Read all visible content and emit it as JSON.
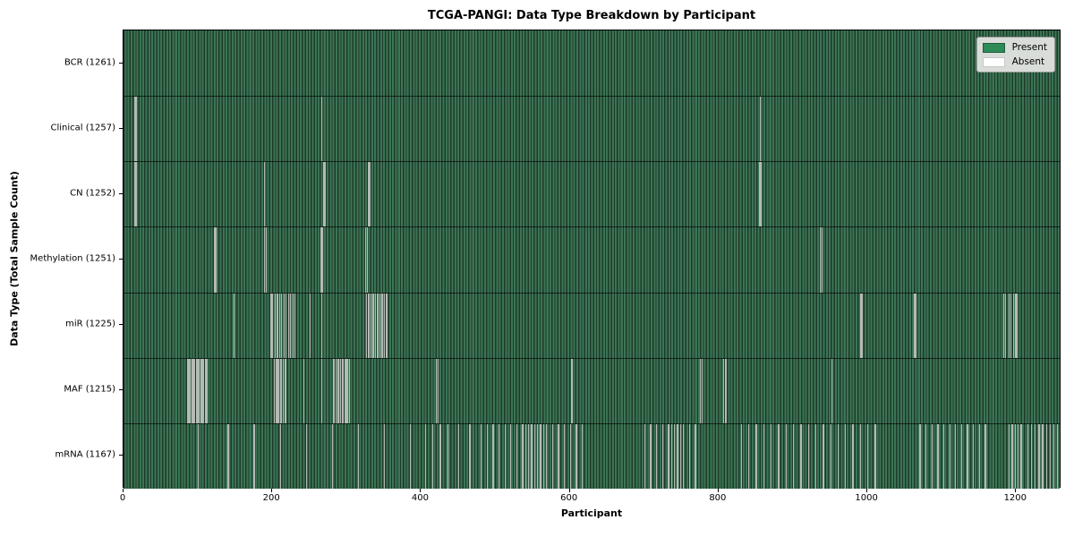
{
  "chart_data": {
    "type": "heatmap",
    "title": "TCGA-PANGI: Data Type Breakdown by Participant",
    "xlabel": "Participant",
    "ylabel": "Data Type (Total Sample Count)",
    "xlim": [
      0,
      1261
    ],
    "xticks": [
      0,
      200,
      400,
      600,
      800,
      1000,
      1200
    ],
    "grid": false,
    "legend_position": "upper right",
    "legend": [
      {
        "label": "Present",
        "color": "#2e8b57"
      },
      {
        "label": "Absent",
        "color": "#ffffff"
      }
    ],
    "colors": {
      "present": "#2e8b57",
      "absent": "#ffffff",
      "stripe_green": "#3c7556",
      "stripe_dark": "#1d3a28",
      "absent_line": "#b4bab4",
      "legend_bg": "#d9ddd9"
    },
    "rows": [
      {
        "label": "BCR (1261)",
        "total": 1261,
        "absent_count": 0,
        "absent_participants": []
      },
      {
        "label": "Clinical (1257)",
        "total": 1257,
        "absent_count": 4,
        "absent_participants": [
          15,
          17,
          266,
          855
        ]
      },
      {
        "label": "CN (1252)",
        "total": 1252,
        "absent_count": 9,
        "absent_participants": [
          14,
          16,
          189,
          268,
          270,
          329,
          331,
          854,
          856
        ]
      },
      {
        "label": "Methylation (1251)",
        "total": 1251,
        "absent_count": 10,
        "absent_participants": [
          121,
          123,
          189,
          191,
          265,
          267,
          325,
          327,
          936,
          938
        ]
      },
      {
        "label": "miR (1225)",
        "total": 1225,
        "absent_count": 36,
        "absent_participants": [
          148,
          197,
          199,
          203,
          206,
          209,
          212,
          215,
          218,
          221,
          224,
          227,
          230,
          250,
          266,
          326,
          329,
          332,
          335,
          338,
          341,
          344,
          347,
          350,
          353,
          990,
          992,
          1063,
          1065,
          1183,
          1185,
          1190,
          1192,
          1196,
          1198,
          1200
        ]
      },
      {
        "label": "MAF (1215)",
        "total": 1215,
        "absent_count": 46,
        "absent_participants": [
          85,
          87,
          89,
          91,
          93,
          95,
          97,
          99,
          101,
          103,
          105,
          107,
          109,
          111,
          202,
          204,
          206,
          208,
          210,
          212,
          214,
          216,
          218,
          242,
          266,
          281,
          283,
          285,
          287,
          289,
          291,
          293,
          295,
          297,
          299,
          301,
          303,
          420,
          422,
          602,
          775,
          777,
          806,
          808,
          810,
          952
        ]
      },
      {
        "label": "mRNA (1167)",
        "total": 1167,
        "absent_count": 94,
        "absent_participants": [
          100,
          140,
          175,
          210,
          245,
          280,
          315,
          350,
          385,
          405,
          415,
          425,
          435,
          450,
          465,
          480,
          488,
          496,
          504,
          512,
          520,
          528,
          536,
          540,
          544,
          548,
          552,
          556,
          560,
          564,
          568,
          576,
          584,
          592,
          600,
          608,
          616,
          700,
          708,
          716,
          724,
          732,
          736,
          740,
          744,
          748,
          752,
          760,
          768,
          830,
          840,
          850,
          860,
          870,
          880,
          890,
          900,
          910,
          920,
          930,
          940,
          950,
          960,
          970,
          980,
          990,
          1000,
          1010,
          1070,
          1078,
          1086,
          1094,
          1102,
          1110,
          1118,
          1126,
          1134,
          1142,
          1150,
          1158,
          1190,
          1194,
          1198,
          1202,
          1206,
          1215,
          1220,
          1225,
          1230,
          1235,
          1240,
          1245,
          1250,
          1255
        ]
      }
    ]
  }
}
